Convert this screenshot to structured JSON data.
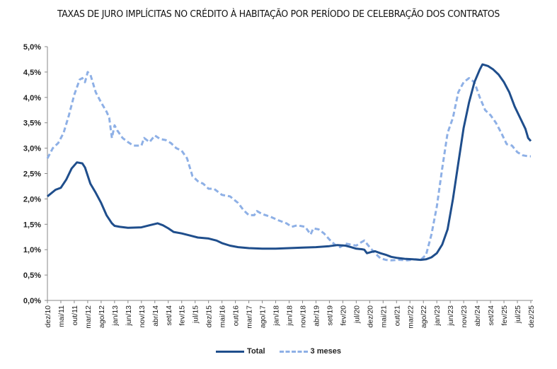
{
  "chart_data": {
    "type": "line",
    "title": "TAXAS DE JURO IMPLÍCITAS NO CRÉDITO À HABITAÇÃO POR PERÍODO DE CELEBRAÇÃO DOS CONTRATOS",
    "xlabel": "",
    "ylabel": "",
    "ylim": [
      0,
      5
    ],
    "y_ticks": [
      "0,0%",
      "0,5%",
      "1,0%",
      "1,5%",
      "2,0%",
      "2,5%",
      "3,0%",
      "3,5%",
      "4,0%",
      "4,5%",
      "5,0%"
    ],
    "x_ticks": [
      "dez/10",
      "mai/11",
      "out/11",
      "mar/12",
      "ago/12",
      "jan/13",
      "jun/13",
      "nov/13",
      "abr/14",
      "set/14",
      "fev/15",
      "jul/15",
      "dez/15",
      "mai/16",
      "out/16",
      "mar/17",
      "ago/17",
      "jan/18",
      "jun/18",
      "nov/18",
      "abr/19",
      "set/19",
      "fev/20",
      "jul/20",
      "dez/20",
      "mai/21",
      "out/21",
      "mar/22",
      "ago/22",
      "jan/23",
      "jun/23",
      "nov/23",
      "abr/24",
      "set/24",
      "fev/25",
      "jul/25",
      "dez/25"
    ],
    "x_unit": "months since dez/10",
    "x_range": [
      0,
      180
    ],
    "grid": false,
    "legend_position": "bottom",
    "series": [
      {
        "name": "Total",
        "color": "#1f4e8c",
        "style": "solid",
        "points": [
          [
            0,
            2.05
          ],
          [
            3,
            2.18
          ],
          [
            5,
            2.22
          ],
          [
            7,
            2.38
          ],
          [
            9,
            2.6
          ],
          [
            11,
            2.72
          ],
          [
            13,
            2.7
          ],
          [
            14,
            2.62
          ],
          [
            16,
            2.3
          ],
          [
            18,
            2.12
          ],
          [
            20,
            1.92
          ],
          [
            22,
            1.68
          ],
          [
            24,
            1.52
          ],
          [
            25,
            1.47
          ],
          [
            27,
            1.45
          ],
          [
            30,
            1.43
          ],
          [
            35,
            1.44
          ],
          [
            38,
            1.48
          ],
          [
            41,
            1.52
          ],
          [
            43,
            1.48
          ],
          [
            45,
            1.42
          ],
          [
            47,
            1.35
          ],
          [
            50,
            1.32
          ],
          [
            53,
            1.28
          ],
          [
            56,
            1.24
          ],
          [
            60,
            1.22
          ],
          [
            63,
            1.18
          ],
          [
            65,
            1.13
          ],
          [
            68,
            1.08
          ],
          [
            71,
            1.05
          ],
          [
            75,
            1.03
          ],
          [
            80,
            1.02
          ],
          [
            85,
            1.02
          ],
          [
            90,
            1.03
          ],
          [
            95,
            1.04
          ],
          [
            100,
            1.05
          ],
          [
            105,
            1.07
          ],
          [
            108,
            1.09
          ],
          [
            111,
            1.08
          ],
          [
            113,
            1.05
          ],
          [
            115,
            1.02
          ],
          [
            117,
            1.01
          ],
          [
            118,
            1.0
          ],
          [
            119,
            0.93
          ],
          [
            121,
            0.96
          ],
          [
            122,
            0.97
          ],
          [
            124,
            0.93
          ],
          [
            126,
            0.9
          ],
          [
            128,
            0.86
          ],
          [
            130,
            0.84
          ],
          [
            133,
            0.82
          ],
          [
            136,
            0.81
          ],
          [
            139,
            0.8
          ],
          [
            141,
            0.81
          ],
          [
            143,
            0.85
          ],
          [
            145,
            0.93
          ],
          [
            147,
            1.1
          ],
          [
            149,
            1.4
          ],
          [
            151,
            2.0
          ],
          [
            153,
            2.7
          ],
          [
            155,
            3.4
          ],
          [
            157,
            3.9
          ],
          [
            159,
            4.3
          ],
          [
            161,
            4.55
          ],
          [
            162,
            4.65
          ],
          [
            164,
            4.62
          ],
          [
            166,
            4.55
          ],
          [
            168,
            4.45
          ],
          [
            170,
            4.3
          ],
          [
            172,
            4.1
          ],
          [
            174,
            3.82
          ],
          [
            176,
            3.6
          ],
          [
            178,
            3.38
          ],
          [
            179,
            3.2
          ],
          [
            180,
            3.14
          ]
        ]
      },
      {
        "name": "3 meses",
        "color": "#8eb0e6",
        "style": "dashed",
        "points": [
          [
            0,
            2.8
          ],
          [
            2,
            3.0
          ],
          [
            4,
            3.1
          ],
          [
            6,
            3.3
          ],
          [
            8,
            3.65
          ],
          [
            10,
            4.05
          ],
          [
            12,
            4.35
          ],
          [
            13,
            4.38
          ],
          [
            14,
            4.3
          ],
          [
            15,
            4.5
          ],
          [
            16,
            4.45
          ],
          [
            18,
            4.1
          ],
          [
            20,
            3.9
          ],
          [
            22,
            3.72
          ],
          [
            23,
            3.6
          ],
          [
            24,
            3.2
          ],
          [
            25,
            3.45
          ],
          [
            26,
            3.35
          ],
          [
            28,
            3.2
          ],
          [
            30,
            3.12
          ],
          [
            32,
            3.05
          ],
          [
            35,
            3.05
          ],
          [
            36,
            3.2
          ],
          [
            38,
            3.12
          ],
          [
            40,
            3.25
          ],
          [
            42,
            3.18
          ],
          [
            44,
            3.16
          ],
          [
            46,
            3.1
          ],
          [
            48,
            3.0
          ],
          [
            50,
            2.95
          ],
          [
            52,
            2.8
          ],
          [
            54,
            2.45
          ],
          [
            56,
            2.35
          ],
          [
            58,
            2.3
          ],
          [
            60,
            2.2
          ],
          [
            62,
            2.2
          ],
          [
            65,
            2.08
          ],
          [
            68,
            2.05
          ],
          [
            71,
            1.92
          ],
          [
            73,
            1.78
          ],
          [
            75,
            1.68
          ],
          [
            77,
            1.68
          ],
          [
            78,
            1.76
          ],
          [
            80,
            1.7
          ],
          [
            83,
            1.65
          ],
          [
            86,
            1.58
          ],
          [
            89,
            1.52
          ],
          [
            91,
            1.45
          ],
          [
            93,
            1.48
          ],
          [
            96,
            1.45
          ],
          [
            98,
            1.3
          ],
          [
            99,
            1.42
          ],
          [
            101,
            1.4
          ],
          [
            103,
            1.32
          ],
          [
            105,
            1.2
          ],
          [
            107,
            1.1
          ],
          [
            109,
            1.05
          ],
          [
            111,
            1.12
          ],
          [
            113,
            1.1
          ],
          [
            115,
            1.08
          ],
          [
            117,
            1.15
          ],
          [
            118,
            1.18
          ],
          [
            120,
            1.05
          ],
          [
            122,
            0.93
          ],
          [
            124,
            0.83
          ],
          [
            126,
            0.8
          ],
          [
            128,
            0.79
          ],
          [
            131,
            0.8
          ],
          [
            134,
            0.79
          ],
          [
            137,
            0.81
          ],
          [
            139,
            0.8
          ],
          [
            141,
            0.9
          ],
          [
            143,
            1.3
          ],
          [
            145,
            1.85
          ],
          [
            147,
            2.6
          ],
          [
            149,
            3.3
          ],
          [
            151,
            3.6
          ],
          [
            153,
            4.1
          ],
          [
            155,
            4.3
          ],
          [
            157,
            4.38
          ],
          [
            159,
            4.3
          ],
          [
            161,
            4.0
          ],
          [
            163,
            3.75
          ],
          [
            165,
            3.65
          ],
          [
            167,
            3.5
          ],
          [
            169,
            3.3
          ],
          [
            171,
            3.08
          ],
          [
            173,
            3.05
          ],
          [
            175,
            2.92
          ],
          [
            177,
            2.86
          ],
          [
            179,
            2.84
          ],
          [
            180,
            2.84
          ]
        ]
      }
    ]
  }
}
